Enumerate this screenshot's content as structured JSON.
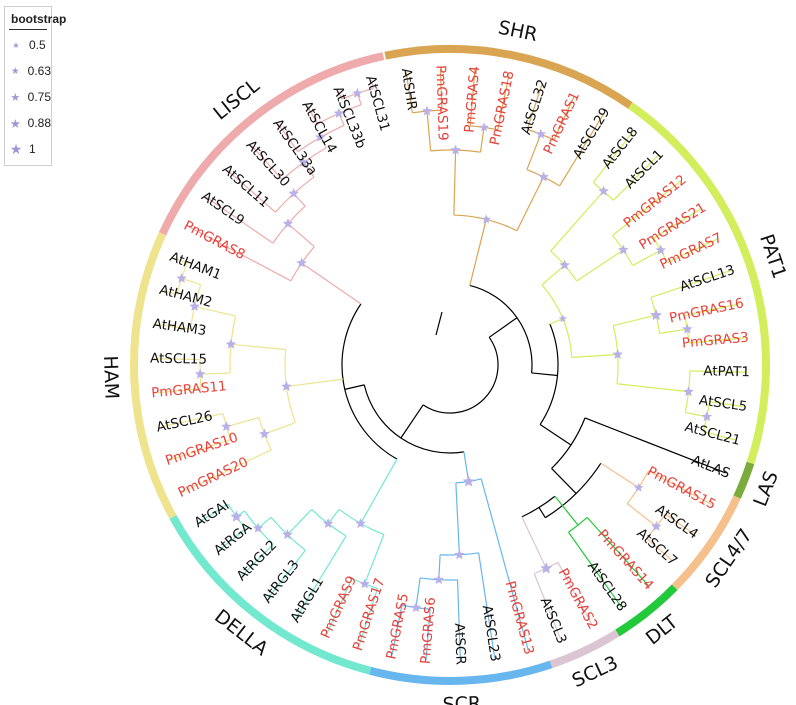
{
  "legend": {
    "title": "bootstrap",
    "items": [
      {
        "label": "0.5",
        "size": 7
      },
      {
        "label": "0.63",
        "size": 8.5
      },
      {
        "label": "0.75",
        "size": 10
      },
      {
        "label": "0.88",
        "size": 11
      },
      {
        "label": "1",
        "size": 12.5
      }
    ]
  },
  "colors": {
    "star": "#b7b1e8",
    "pm_label": "#e8403a",
    "at_label": "#111111",
    "root_branch": "#000000"
  },
  "leaves": [
    {
      "name": "AtSHR",
      "clade": "SHR"
    },
    {
      "name": "PmGRAS19",
      "clade": "SHR"
    },
    {
      "name": "PmGRAS4",
      "clade": "SHR"
    },
    {
      "name": "PmGRAS18",
      "clade": "SHR"
    },
    {
      "name": "AtSCL32",
      "clade": "SHR"
    },
    {
      "name": "PmGRAS1",
      "clade": "SHR"
    },
    {
      "name": "AtSCL29",
      "clade": "SHR"
    },
    {
      "name": "AtSCL8",
      "clade": "PAT1"
    },
    {
      "name": "AtSCL1",
      "clade": "PAT1"
    },
    {
      "name": "PmGRAS12",
      "clade": "PAT1"
    },
    {
      "name": "PmGRAS21",
      "clade": "PAT1"
    },
    {
      "name": "PmGRAS7",
      "clade": "PAT1"
    },
    {
      "name": "AtSCL13",
      "clade": "PAT1"
    },
    {
      "name": "PmGRAS16",
      "clade": "PAT1"
    },
    {
      "name": "PmGRAS3",
      "clade": "PAT1"
    },
    {
      "name": "AtPAT1",
      "clade": "PAT1"
    },
    {
      "name": "AtSCL5",
      "clade": "PAT1"
    },
    {
      "name": "AtSCL21",
      "clade": "PAT1"
    },
    {
      "name": "AtLAS",
      "clade": "LAS"
    },
    {
      "name": "PmGRAS15",
      "clade": "SCL4/7"
    },
    {
      "name": "AtSCL4",
      "clade": "SCL4/7"
    },
    {
      "name": "AtSCL7",
      "clade": "SCL4/7"
    },
    {
      "name": "PmGRAS14",
      "clade": "DLT"
    },
    {
      "name": "AtSCL28",
      "clade": "DLT"
    },
    {
      "name": "PmGRAS2",
      "clade": "SCL3"
    },
    {
      "name": "AtSCL3",
      "clade": "SCL3"
    },
    {
      "name": "PmGRAS13",
      "clade": "SCR"
    },
    {
      "name": "AtSCL23",
      "clade": "SCR"
    },
    {
      "name": "AtSCR",
      "clade": "SCR"
    },
    {
      "name": "PmGRAS6",
      "clade": "SCR"
    },
    {
      "name": "PmGRAS5",
      "clade": "SCR"
    },
    {
      "name": "PmGRAS17",
      "clade": "DELLA"
    },
    {
      "name": "PmGRAS9",
      "clade": "DELLA"
    },
    {
      "name": "AtRGL1",
      "clade": "DELLA"
    },
    {
      "name": "AtRGL3",
      "clade": "DELLA"
    },
    {
      "name": "AtRGL2",
      "clade": "DELLA"
    },
    {
      "name": "AtRGA",
      "clade": "DELLA"
    },
    {
      "name": "AtGAI",
      "clade": "DELLA"
    },
    {
      "name": "PmGRAS20",
      "clade": "HAM"
    },
    {
      "name": "PmGRAS10",
      "clade": "HAM"
    },
    {
      "name": "AtSCL26",
      "clade": "HAM"
    },
    {
      "name": "PmGRAS11",
      "clade": "HAM"
    },
    {
      "name": "AtSCL15",
      "clade": "HAM"
    },
    {
      "name": "AtHAM3",
      "clade": "HAM"
    },
    {
      "name": "AtHAM2",
      "clade": "HAM"
    },
    {
      "name": "AtHAM1",
      "clade": "HAM"
    },
    {
      "name": "PmGRAS8",
      "clade": "LISCL"
    },
    {
      "name": "AtSCL9",
      "clade": "LISCL"
    },
    {
      "name": "AtSCL11",
      "clade": "LISCL"
    },
    {
      "name": "AtSCL30",
      "clade": "LISCL"
    },
    {
      "name": "AtSCL33a",
      "clade": "LISCL"
    },
    {
      "name": "AtSCL14",
      "clade": "LISCL"
    },
    {
      "name": "AtSCL33b",
      "clade": "LISCL"
    },
    {
      "name": "AtSCL31",
      "clade": "LISCL"
    }
  ],
  "clades": [
    {
      "name": "SHR",
      "color": "#d9a552"
    },
    {
      "name": "PAT1",
      "color": "#d2ee5c"
    },
    {
      "name": "LAS",
      "color": "#7aab3c"
    },
    {
      "name": "SCL4/7",
      "color": "#f5c08c"
    },
    {
      "name": "DLT",
      "color": "#22c93a"
    },
    {
      "name": "SCL3",
      "color": "#dcc5d2"
    },
    {
      "name": "SCR",
      "color": "#68b6ee"
    },
    {
      "name": "DELLA",
      "color": "#72e8cf"
    },
    {
      "name": "HAM",
      "color": "#efe38e"
    },
    {
      "name": "LISCL",
      "color": "#efaaab"
    }
  ]
}
